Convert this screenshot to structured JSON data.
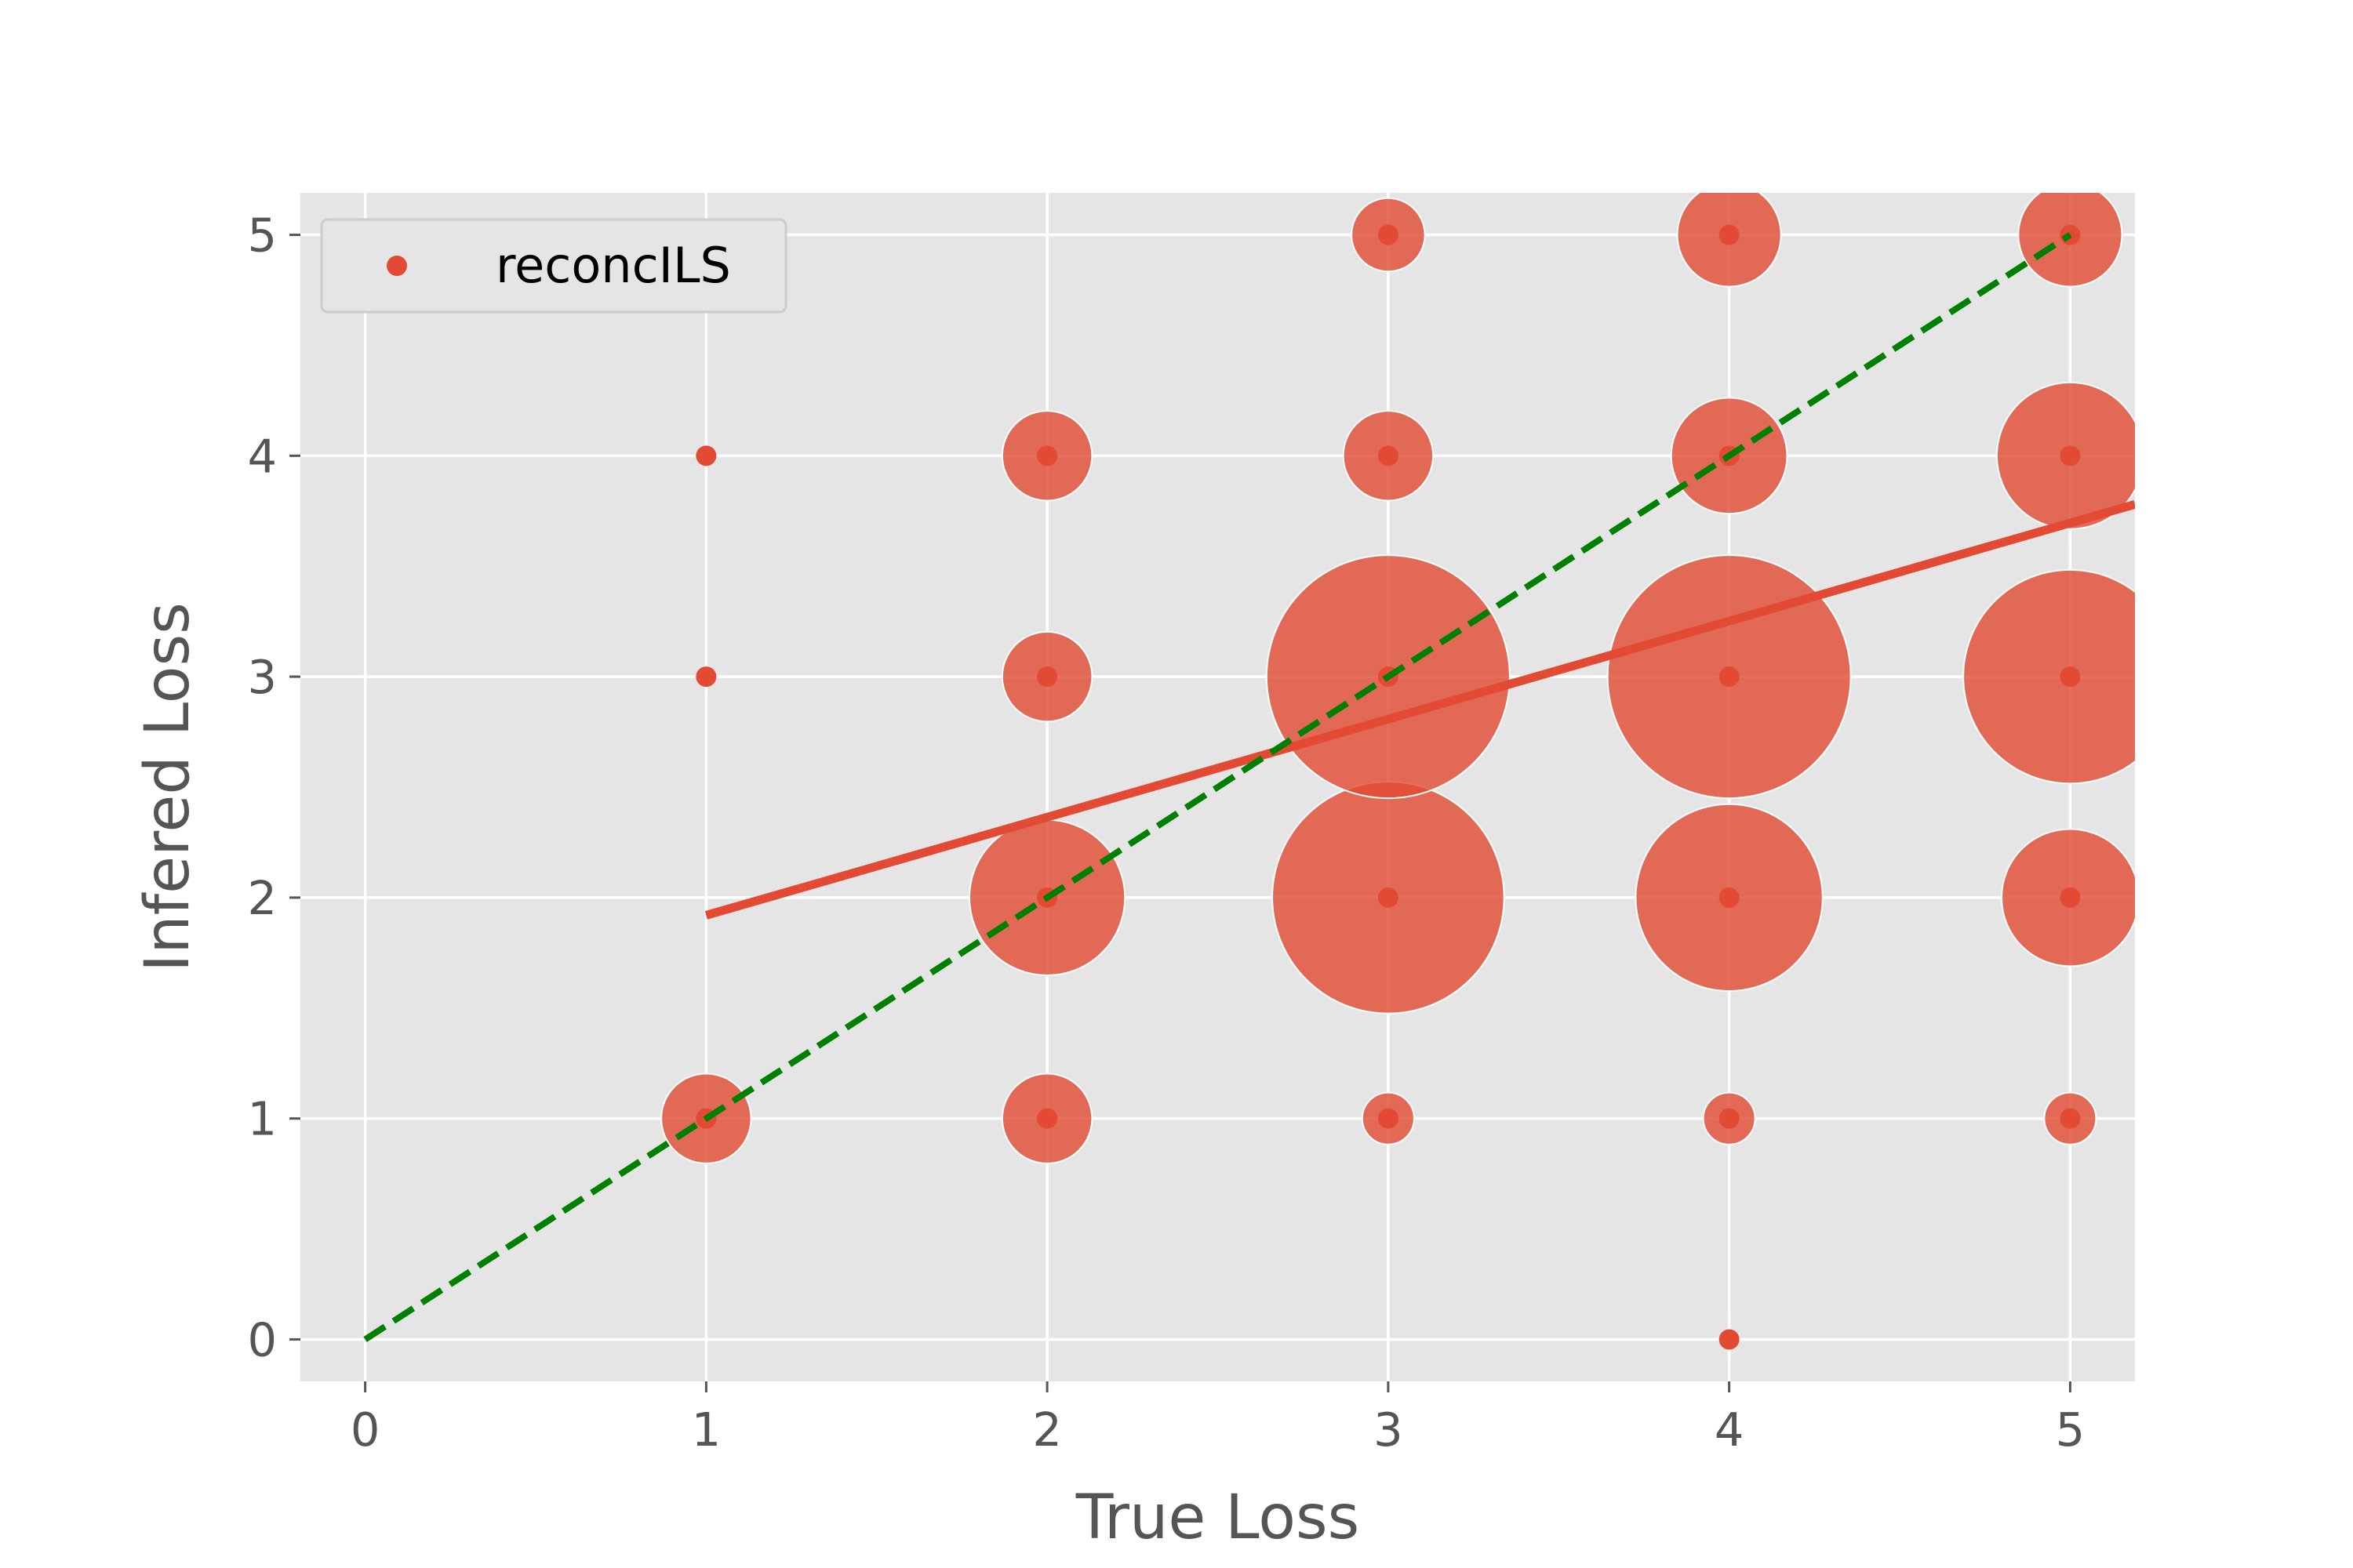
{
  "chart_data": {
    "type": "scatter",
    "title": "",
    "xlabel": "True Loss",
    "ylabel": "Infered Loss",
    "xlim": [
      -0.19,
      5.19
    ],
    "ylim": [
      -0.19,
      5.19
    ],
    "xticks": [
      "0",
      "1",
      "2",
      "3",
      "4",
      "5"
    ],
    "yticks": [
      "0",
      "1",
      "2",
      "3",
      "4",
      "5"
    ],
    "grid": true,
    "legend_placement": "top-left",
    "legend": [
      "reconcILS"
    ],
    "series": [
      {
        "name": "reconcILS",
        "color": "#E24A33",
        "points": [
          {
            "x": 1,
            "y": 1,
            "size": 3
          },
          {
            "x": 1,
            "y": 3,
            "size": 0
          },
          {
            "x": 1,
            "y": 4,
            "size": 0
          },
          {
            "x": 2,
            "y": 1,
            "size": 3
          },
          {
            "x": 2,
            "y": 2,
            "size": 9
          },
          {
            "x": 2,
            "y": 3,
            "size": 3
          },
          {
            "x": 2,
            "y": 4,
            "size": 3
          },
          {
            "x": 3,
            "y": 1,
            "size": 1
          },
          {
            "x": 3,
            "y": 2,
            "size": 20
          },
          {
            "x": 3,
            "y": 3,
            "size": 22
          },
          {
            "x": 3,
            "y": 4,
            "size": 3
          },
          {
            "x": 3,
            "y": 5,
            "size": 2
          },
          {
            "x": 4,
            "y": 0,
            "size": 0
          },
          {
            "x": 4,
            "y": 1,
            "size": 1
          },
          {
            "x": 4,
            "y": 2,
            "size": 13
          },
          {
            "x": 4,
            "y": 3,
            "size": 22
          },
          {
            "x": 4,
            "y": 4,
            "size": 5
          },
          {
            "x": 4,
            "y": 5,
            "size": 4
          },
          {
            "x": 5,
            "y": 1,
            "size": 1
          },
          {
            "x": 5,
            "y": 2,
            "size": 7
          },
          {
            "x": 5,
            "y": 3,
            "size": 17
          },
          {
            "x": 5,
            "y": 4,
            "size": 8
          },
          {
            "x": 5,
            "y": 5,
            "size": 4
          }
        ]
      }
    ],
    "regression_line": {
      "color": "#E24A33",
      "x": [
        1,
        5.19
      ],
      "y": [
        1.92,
        3.78
      ]
    },
    "identity_line": {
      "color": "#008000",
      "style": "dashed",
      "x": [
        0,
        5
      ],
      "y": [
        0,
        5
      ]
    }
  }
}
